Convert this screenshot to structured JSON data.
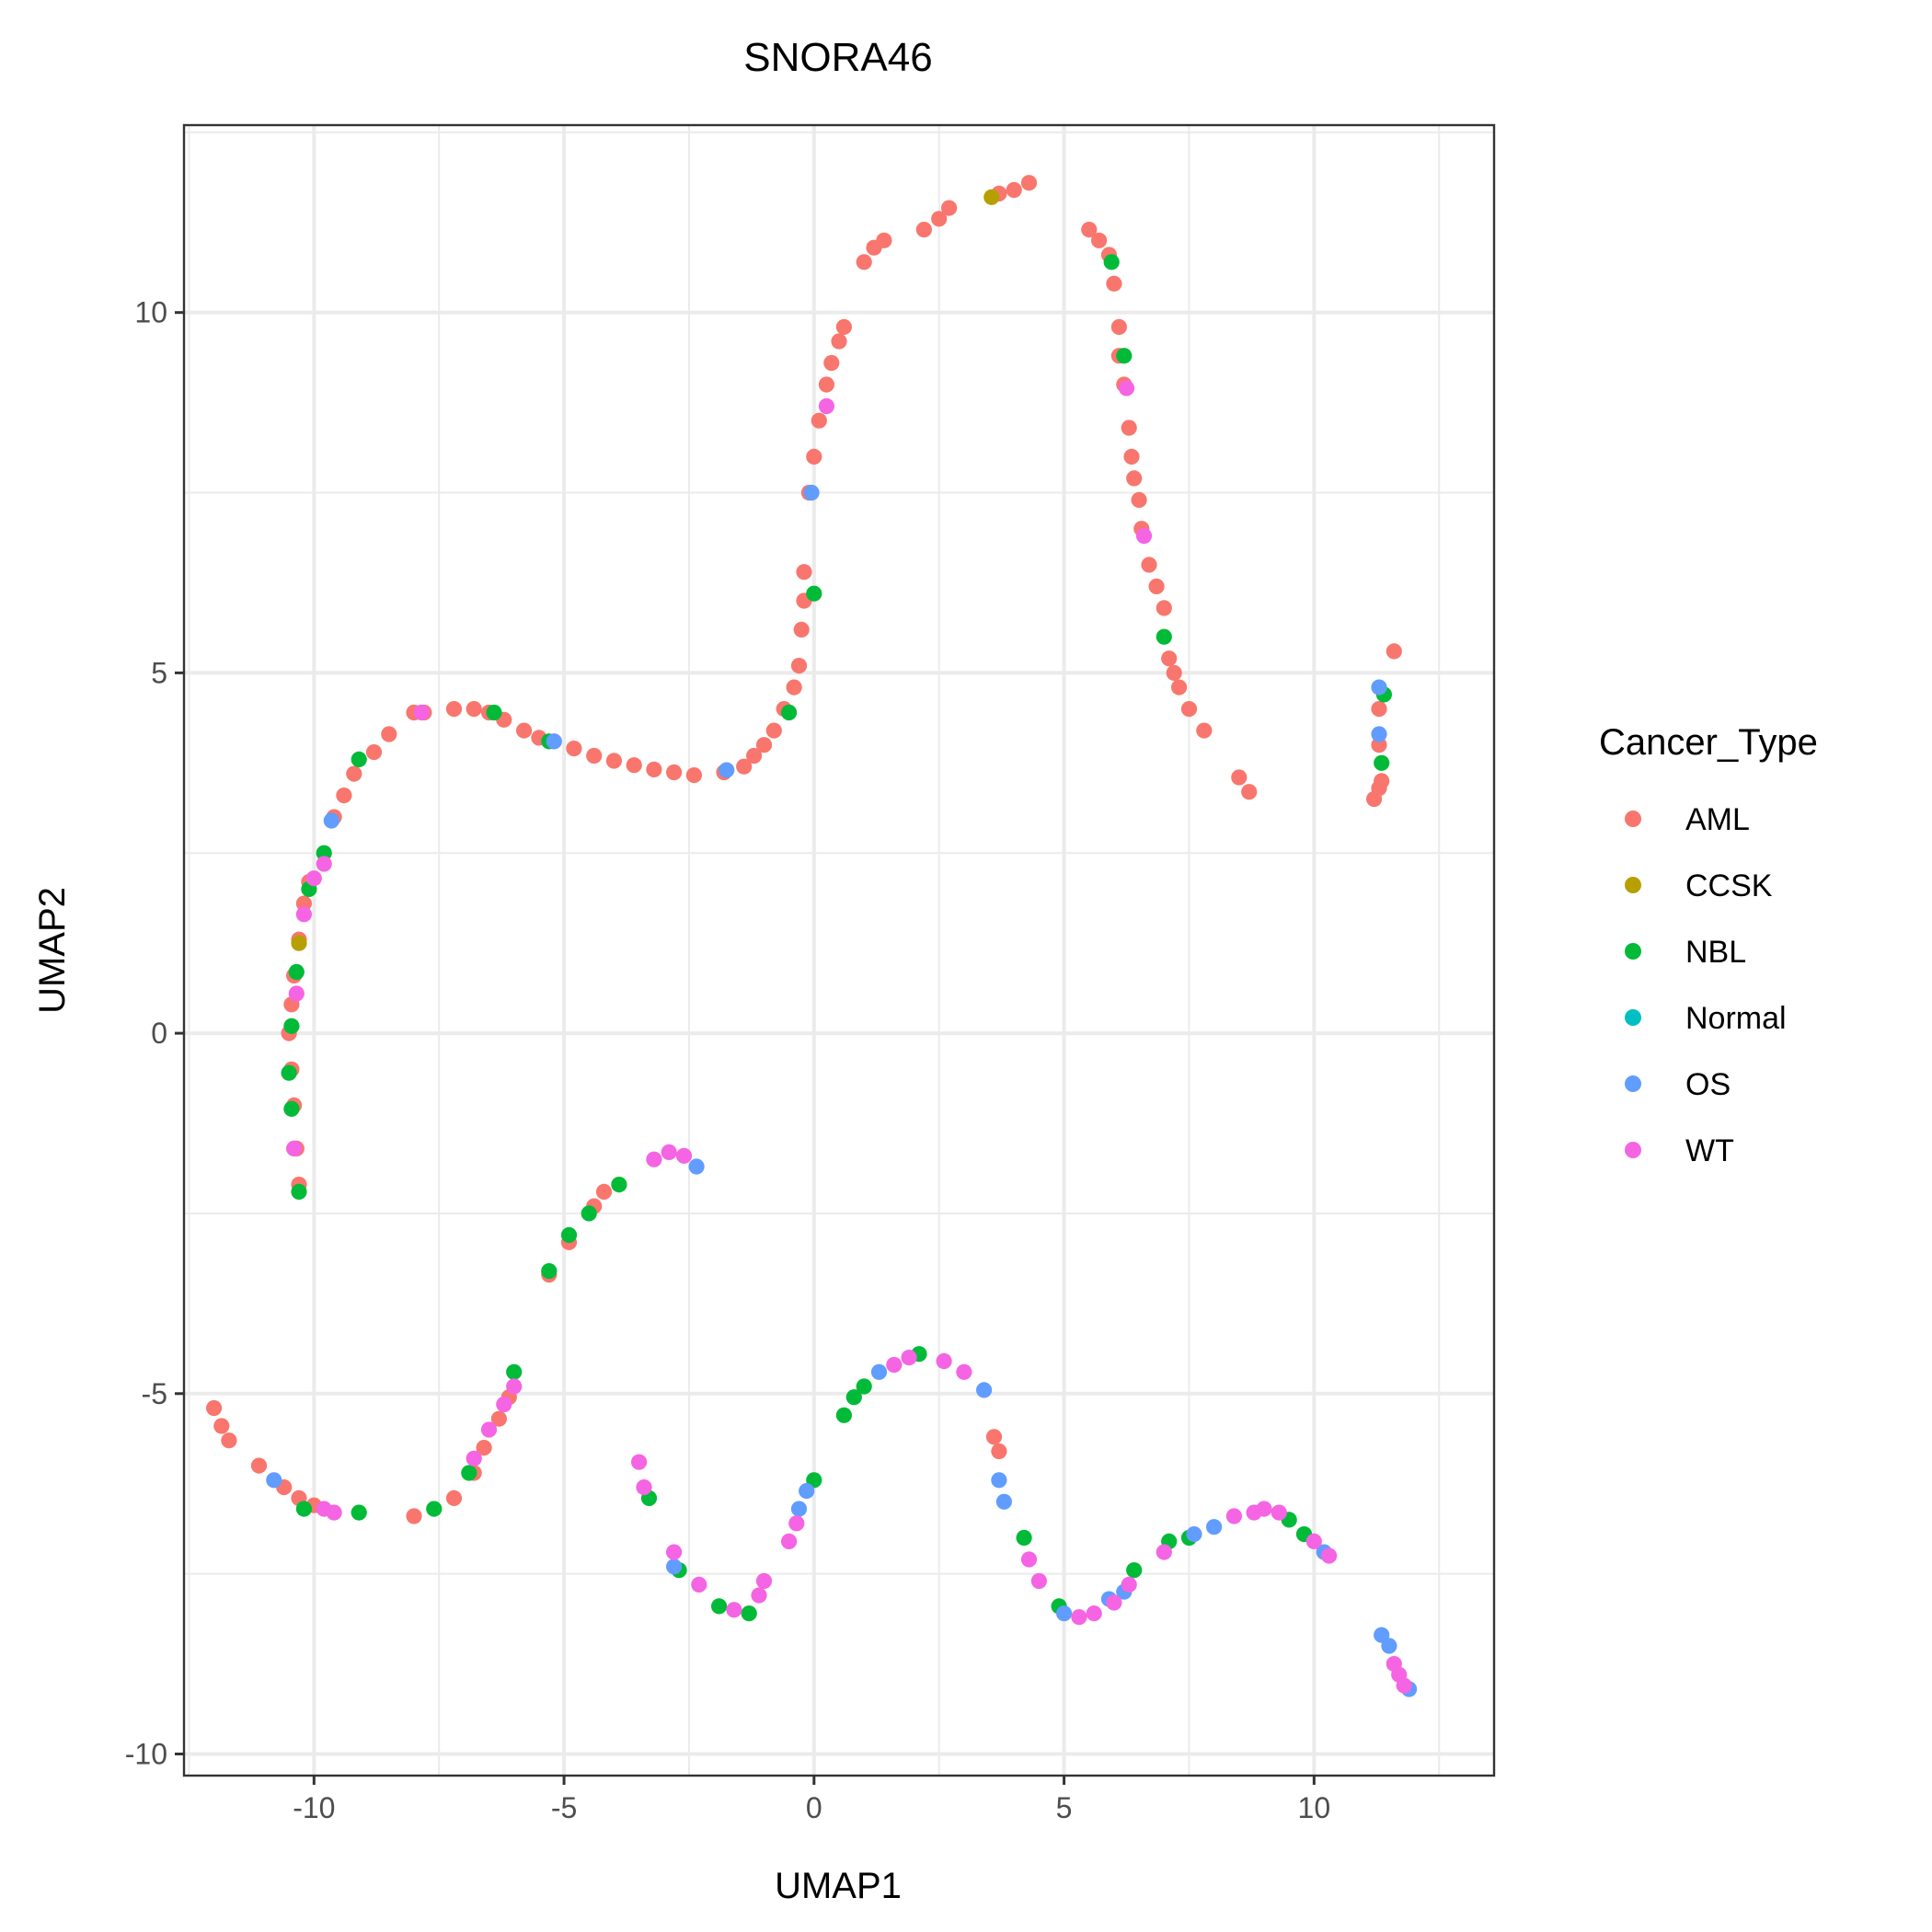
{
  "chart_data": {
    "type": "scatter",
    "title": "SNORA46",
    "xlabel": "UMAP1",
    "ylabel": "UMAP2",
    "xlim": [
      -12.6,
      13.6
    ],
    "ylim": [
      -10.3,
      12.6
    ],
    "xticks": [
      -10,
      -5,
      0,
      5,
      10
    ],
    "yticks": [
      -10,
      -5,
      0,
      5,
      10
    ],
    "xtick_labels": [
      "-10",
      "-5",
      "0",
      "5",
      "10"
    ],
    "ytick_labels": [
      "-10",
      "-5",
      "0",
      "5",
      "10"
    ],
    "grid": true,
    "legend": {
      "title": "Cancer_Type",
      "position": "right",
      "entries": [
        "AML",
        "CCSK",
        "NBL",
        "Normal",
        "OS",
        "WT"
      ]
    },
    "colors": {
      "AML": "#F8766D",
      "CCSK": "#B79F00",
      "NBL": "#00BA38",
      "Normal": "#00BFC4",
      "OS": "#619CFF",
      "WT": "#F564E3"
    },
    "series": [
      {
        "name": "AML",
        "points": [
          [
            -10.3,
            -2.1
          ],
          [
            -10.35,
            -1.6
          ],
          [
            -10.4,
            -1.0
          ],
          [
            -10.45,
            -0.5
          ],
          [
            -10.5,
            0.0
          ],
          [
            -10.45,
            0.4
          ],
          [
            -10.4,
            0.8
          ],
          [
            -10.3,
            1.3
          ],
          [
            -10.2,
            1.8
          ],
          [
            -10.1,
            2.1
          ],
          [
            -9.6,
            3.0
          ],
          [
            -9.4,
            3.3
          ],
          [
            -9.2,
            3.6
          ],
          [
            -8.8,
            3.9
          ],
          [
            -8.5,
            4.15
          ],
          [
            -8.0,
            4.45
          ],
          [
            -7.8,
            4.45
          ],
          [
            -7.2,
            4.5
          ],
          [
            -6.8,
            4.5
          ],
          [
            -6.5,
            4.45
          ],
          [
            -6.2,
            4.35
          ],
          [
            -5.8,
            4.2
          ],
          [
            -5.5,
            4.1
          ],
          [
            -5.2,
            4.05
          ],
          [
            -4.8,
            3.95
          ],
          [
            -4.4,
            3.85
          ],
          [
            -4.0,
            3.78
          ],
          [
            -3.6,
            3.72
          ],
          [
            -3.2,
            3.66
          ],
          [
            -2.8,
            3.62
          ],
          [
            -2.4,
            3.58
          ],
          [
            -1.8,
            3.62
          ],
          [
            -1.4,
            3.7
          ],
          [
            -1.2,
            3.85
          ],
          [
            -1.0,
            4.0
          ],
          [
            -0.8,
            4.2
          ],
          [
            -0.6,
            4.5
          ],
          [
            -0.4,
            4.8
          ],
          [
            -0.3,
            5.1
          ],
          [
            -0.25,
            5.6
          ],
          [
            -0.2,
            6.0
          ],
          [
            -0.2,
            6.4
          ],
          [
            -0.1,
            7.5
          ],
          [
            0.0,
            8.0
          ],
          [
            0.1,
            8.5
          ],
          [
            0.25,
            9.0
          ],
          [
            0.35,
            9.3
          ],
          [
            0.5,
            9.6
          ],
          [
            0.6,
            9.8
          ],
          [
            1.0,
            10.7
          ],
          [
            1.2,
            10.9
          ],
          [
            1.4,
            11.0
          ],
          [
            2.2,
            11.15
          ],
          [
            2.5,
            11.3
          ],
          [
            2.7,
            11.45
          ],
          [
            3.7,
            11.65
          ],
          [
            4.0,
            11.7
          ],
          [
            4.3,
            11.8
          ],
          [
            5.5,
            11.15
          ],
          [
            5.7,
            11.0
          ],
          [
            5.9,
            10.8
          ],
          [
            6.0,
            10.4
          ],
          [
            6.1,
            9.8
          ],
          [
            6.1,
            9.4
          ],
          [
            6.2,
            9.0
          ],
          [
            6.3,
            8.4
          ],
          [
            6.35,
            8.0
          ],
          [
            6.4,
            7.7
          ],
          [
            6.5,
            7.4
          ],
          [
            6.55,
            7.0
          ],
          [
            6.7,
            6.5
          ],
          [
            6.85,
            6.2
          ],
          [
            7.0,
            5.9
          ],
          [
            7.1,
            5.2
          ],
          [
            7.2,
            5.0
          ],
          [
            7.3,
            4.8
          ],
          [
            7.5,
            4.5
          ],
          [
            7.8,
            4.2
          ],
          [
            8.5,
            3.55
          ],
          [
            8.7,
            3.35
          ],
          [
            11.2,
            3.25
          ],
          [
            11.3,
            3.4
          ],
          [
            11.35,
            3.5
          ],
          [
            11.3,
            4.0
          ],
          [
            11.3,
            4.5
          ],
          [
            11.6,
            5.3
          ],
          [
            -12.0,
            -5.2
          ],
          [
            -11.85,
            -5.45
          ],
          [
            -11.7,
            -5.65
          ],
          [
            -11.1,
            -6.0
          ],
          [
            -10.6,
            -6.3
          ],
          [
            -10.3,
            -6.45
          ],
          [
            -10.0,
            -6.55
          ],
          [
            -8.0,
            -6.7
          ],
          [
            -7.2,
            -6.45
          ],
          [
            -6.8,
            -6.1
          ],
          [
            -6.6,
            -5.75
          ],
          [
            -6.3,
            -5.35
          ],
          [
            -6.1,
            -5.05
          ],
          [
            -5.3,
            -3.35
          ],
          [
            -4.9,
            -2.9
          ],
          [
            -4.4,
            -2.4
          ],
          [
            -4.2,
            -2.2
          ],
          [
            3.6,
            -5.6
          ],
          [
            3.7,
            -5.8
          ]
        ]
      },
      {
        "name": "CCSK",
        "points": [
          [
            -10.3,
            1.25
          ],
          [
            3.55,
            11.6
          ]
        ]
      },
      {
        "name": "NBL",
        "points": [
          [
            -9.8,
            2.5
          ],
          [
            -10.1,
            2.0
          ],
          [
            -10.35,
            0.85
          ],
          [
            -10.45,
            0.1
          ],
          [
            -10.5,
            -0.55
          ],
          [
            -10.45,
            -1.05
          ],
          [
            -10.3,
            -2.2
          ],
          [
            -9.1,
            3.8
          ],
          [
            -6.4,
            4.45
          ],
          [
            -5.3,
            4.05
          ],
          [
            -0.5,
            4.45
          ],
          [
            0.0,
            6.1
          ],
          [
            5.95,
            10.7
          ],
          [
            6.2,
            9.4
          ],
          [
            7.0,
            5.5
          ],
          [
            11.35,
            3.75
          ],
          [
            11.4,
            4.7
          ],
          [
            -10.2,
            -6.6
          ],
          [
            -9.1,
            -6.65
          ],
          [
            -7.6,
            -6.6
          ],
          [
            -6.9,
            -6.1
          ],
          [
            -6.0,
            -4.7
          ],
          [
            -5.3,
            -3.3
          ],
          [
            -4.9,
            -2.8
          ],
          [
            -4.5,
            -2.5
          ],
          [
            -3.9,
            -2.1
          ],
          [
            -3.3,
            -6.45
          ],
          [
            -2.7,
            -7.45
          ],
          [
            -1.9,
            -7.95
          ],
          [
            -1.3,
            -8.05
          ],
          [
            0.0,
            -6.2
          ],
          [
            0.6,
            -5.3
          ],
          [
            0.8,
            -5.05
          ],
          [
            1.0,
            -4.9
          ],
          [
            2.1,
            -4.45
          ],
          [
            4.2,
            -7.0
          ],
          [
            4.9,
            -7.95
          ],
          [
            6.4,
            -7.45
          ],
          [
            7.1,
            -7.05
          ],
          [
            7.5,
            -7.0
          ],
          [
            9.5,
            -6.75
          ],
          [
            9.8,
            -6.95
          ]
        ]
      },
      {
        "name": "OS",
        "points": [
          [
            -9.65,
            2.95
          ],
          [
            -5.2,
            4.05
          ],
          [
            -1.75,
            3.65
          ],
          [
            -0.05,
            7.5
          ],
          [
            11.3,
            4.8
          ],
          [
            11.3,
            4.15
          ],
          [
            -10.8,
            -6.2
          ],
          [
            -2.35,
            -1.85
          ],
          [
            -2.8,
            -7.4
          ],
          [
            -0.3,
            -6.6
          ],
          [
            -0.15,
            -6.35
          ],
          [
            1.3,
            -4.7
          ],
          [
            3.4,
            -4.95
          ],
          [
            3.7,
            -6.2
          ],
          [
            3.8,
            -6.5
          ],
          [
            5.0,
            -8.05
          ],
          [
            5.9,
            -7.85
          ],
          [
            6.2,
            -7.75
          ],
          [
            7.6,
            -6.95
          ],
          [
            8.0,
            -6.85
          ],
          [
            10.2,
            -7.2
          ],
          [
            11.35,
            -8.35
          ],
          [
            11.5,
            -8.5
          ],
          [
            11.9,
            -9.1
          ]
        ]
      },
      {
        "name": "WT",
        "points": [
          [
            -10.4,
            -1.6
          ],
          [
            -10.35,
            0.55
          ],
          [
            -10.2,
            1.65
          ],
          [
            -10.0,
            2.15
          ],
          [
            -9.8,
            2.35
          ],
          [
            0.25,
            8.7
          ],
          [
            6.25,
            8.95
          ],
          [
            6.6,
            6.9
          ],
          [
            -7.85,
            4.45
          ],
          [
            -9.8,
            -6.6
          ],
          [
            -9.6,
            -6.65
          ],
          [
            -6.8,
            -5.9
          ],
          [
            -6.5,
            -5.5
          ],
          [
            -6.2,
            -5.15
          ],
          [
            -6.0,
            -4.9
          ],
          [
            -3.2,
            -1.75
          ],
          [
            -2.9,
            -1.65
          ],
          [
            -2.6,
            -1.7
          ],
          [
            -3.5,
            -5.95
          ],
          [
            -3.4,
            -6.3
          ],
          [
            -2.8,
            -7.2
          ],
          [
            -2.3,
            -7.65
          ],
          [
            -1.6,
            -8.0
          ],
          [
            -1.1,
            -7.8
          ],
          [
            -1.0,
            -7.6
          ],
          [
            -0.5,
            -7.05
          ],
          [
            -0.35,
            -6.8
          ],
          [
            1.6,
            -4.6
          ],
          [
            1.9,
            -4.5
          ],
          [
            2.6,
            -4.55
          ],
          [
            3.0,
            -4.7
          ],
          [
            4.3,
            -7.3
          ],
          [
            4.5,
            -7.6
          ],
          [
            5.3,
            -8.1
          ],
          [
            5.6,
            -8.05
          ],
          [
            6.0,
            -7.9
          ],
          [
            6.3,
            -7.65
          ],
          [
            7.0,
            -7.2
          ],
          [
            8.4,
            -6.7
          ],
          [
            8.8,
            -6.65
          ],
          [
            9.0,
            -6.6
          ],
          [
            9.3,
            -6.65
          ],
          [
            10.0,
            -7.05
          ],
          [
            10.3,
            -7.25
          ],
          [
            11.6,
            -8.75
          ],
          [
            11.7,
            -8.9
          ],
          [
            11.8,
            -9.05
          ]
        ]
      },
      {
        "name": "Normal",
        "points": []
      }
    ]
  }
}
